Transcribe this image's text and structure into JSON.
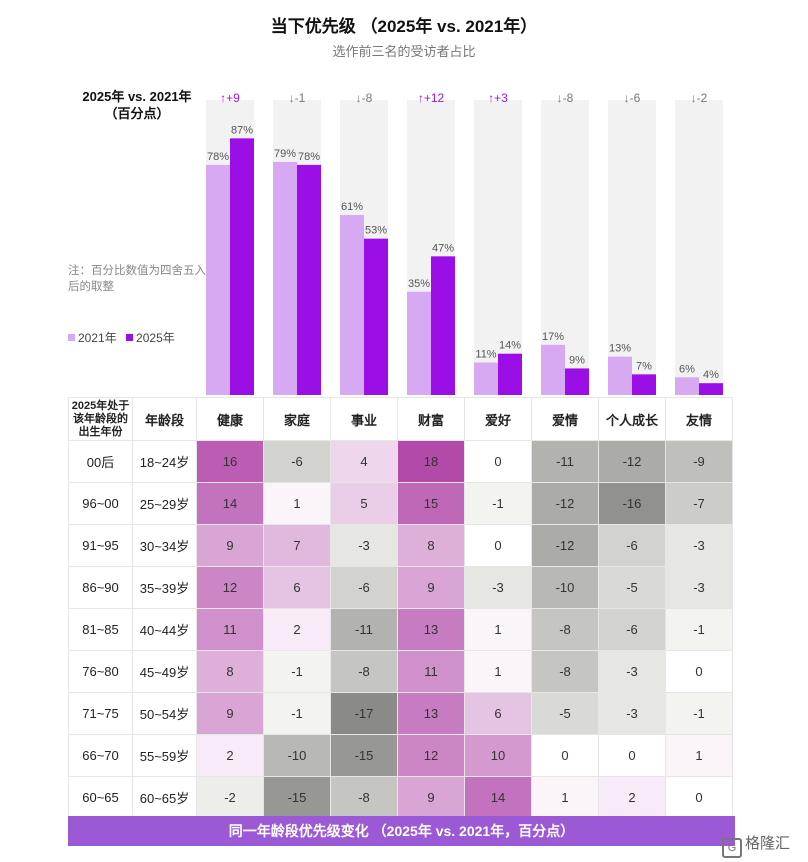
{
  "title": "当下优先级 （2025年 vs. 2021年）",
  "subtitle": "选作前三名的受访者占比",
  "diff_heading": [
    "2025年 vs. 2021年",
    "（百分点）"
  ],
  "note": "注：百分比数值为四舍五入后的取整",
  "footer": "同一年龄段优先级变化 （2025年 vs. 2021年，百分点）",
  "brand": {
    "logo_letter": "G",
    "text": "格隆汇"
  },
  "colors": {
    "y2021": "#d7a9f2",
    "y2025": "#9b0fe6",
    "up": "#9b17e0",
    "down": "#777777",
    "footer": "#9b59d6"
  },
  "chart_data": [
    {
      "type": "bar",
      "categories": [
        "健康",
        "家庭",
        "事业",
        "财富",
        "爱好",
        "爱情",
        "个人成长",
        "友情"
      ],
      "series": [
        {
          "name": "2021年",
          "values": [
            78,
            79,
            61,
            35,
            11,
            17,
            13,
            6
          ]
        },
        {
          "name": "2025年",
          "values": [
            87,
            78,
            53,
            47,
            14,
            9,
            7,
            4
          ]
        }
      ],
      "value_labels": {
        "2021年": [
          "78%",
          "79%",
          "61%",
          "35%",
          "11%",
          "17%",
          "13%",
          "6%"
        ],
        "2025年": [
          "87%",
          "78%",
          "53%",
          "47%",
          "14%",
          "9%",
          "7%",
          "4%"
        ]
      },
      "changes": [
        "↑+9",
        "↓-1",
        "↓-8",
        "↑+12",
        "↑+3",
        "↓-8",
        "↓-6",
        "↓-2"
      ],
      "change_values": [
        9,
        -1,
        -8,
        12,
        3,
        -8,
        -6,
        -2
      ],
      "ylim": [
        0,
        100
      ],
      "legend": "left"
    },
    {
      "type": "heatmap",
      "corner_header": "2025年处于该年龄段的出生年份",
      "age_header": "年龄段",
      "columns": [
        "健康",
        "家庭",
        "事业",
        "财富",
        "爱好",
        "爱情",
        "个人成长",
        "友情"
      ],
      "rows": [
        {
          "birth": "00后",
          "age": "18~24岁",
          "values": [
            16,
            -6,
            4,
            18,
            0,
            -11,
            -12,
            -9
          ]
        },
        {
          "birth": "96~00",
          "age": "25~29岁",
          "values": [
            14,
            1,
            5,
            15,
            -1,
            -12,
            -16,
            -7
          ]
        },
        {
          "birth": "91~95",
          "age": "30~34岁",
          "values": [
            9,
            7,
            -3,
            8,
            0,
            -12,
            -6,
            -3
          ]
        },
        {
          "birth": "86~90",
          "age": "35~39岁",
          "values": [
            12,
            6,
            -6,
            9,
            -3,
            -10,
            -5,
            -3
          ]
        },
        {
          "birth": "81~85",
          "age": "40~44岁",
          "values": [
            11,
            2,
            -11,
            13,
            1,
            -8,
            -6,
            -1
          ]
        },
        {
          "birth": "76~80",
          "age": "45~49岁",
          "values": [
            8,
            -1,
            -8,
            11,
            1,
            -8,
            -3,
            0
          ]
        },
        {
          "birth": "71~75",
          "age": "50~54岁",
          "values": [
            9,
            -1,
            -17,
            13,
            6,
            -5,
            -3,
            -1
          ]
        },
        {
          "birth": "66~70",
          "age": "55~59岁",
          "values": [
            2,
            -10,
            -15,
            12,
            10,
            0,
            0,
            1
          ]
        },
        {
          "birth": "60~65",
          "age": "60~65岁",
          "values": [
            -2,
            -15,
            -8,
            9,
            14,
            1,
            2,
            0
          ]
        }
      ]
    }
  ]
}
